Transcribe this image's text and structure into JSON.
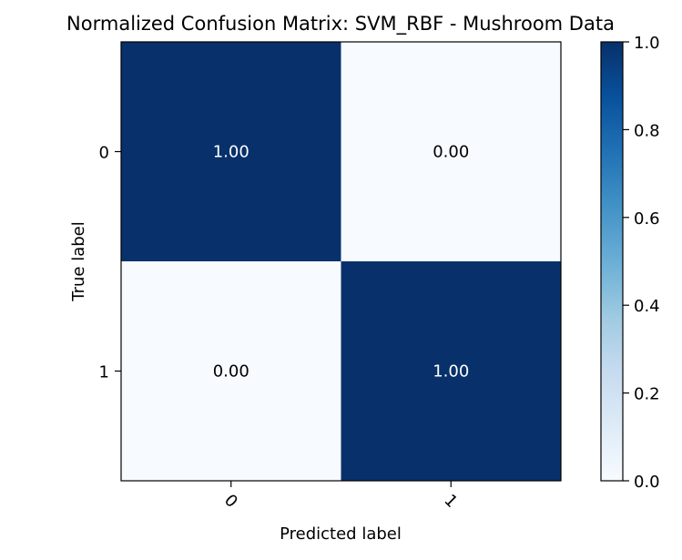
{
  "chart_data": {
    "type": "heatmap",
    "title": "Normalized Confusion Matrix: SVM_RBF - Mushroom Data",
    "xlabel": "Predicted label",
    "ylabel": "True label",
    "x_categories": [
      "0",
      "1"
    ],
    "y_categories": [
      "0",
      "1"
    ],
    "values": [
      [
        1.0,
        0.0
      ],
      [
        0.0,
        1.0
      ]
    ],
    "cell_labels": [
      [
        "1.00",
        "0.00"
      ],
      [
        "0.00",
        "1.00"
      ]
    ],
    "colorscale": "Blues",
    "colorscale_low": "#f7fbff",
    "colorscale_high": "#08306b",
    "vmin": 0.0,
    "vmax": 1.0,
    "colorbar_ticks": [
      "0.0",
      "0.2",
      "0.4",
      "0.6",
      "0.8",
      "1.0"
    ],
    "colorbar_placement": "right",
    "grid": false
  }
}
